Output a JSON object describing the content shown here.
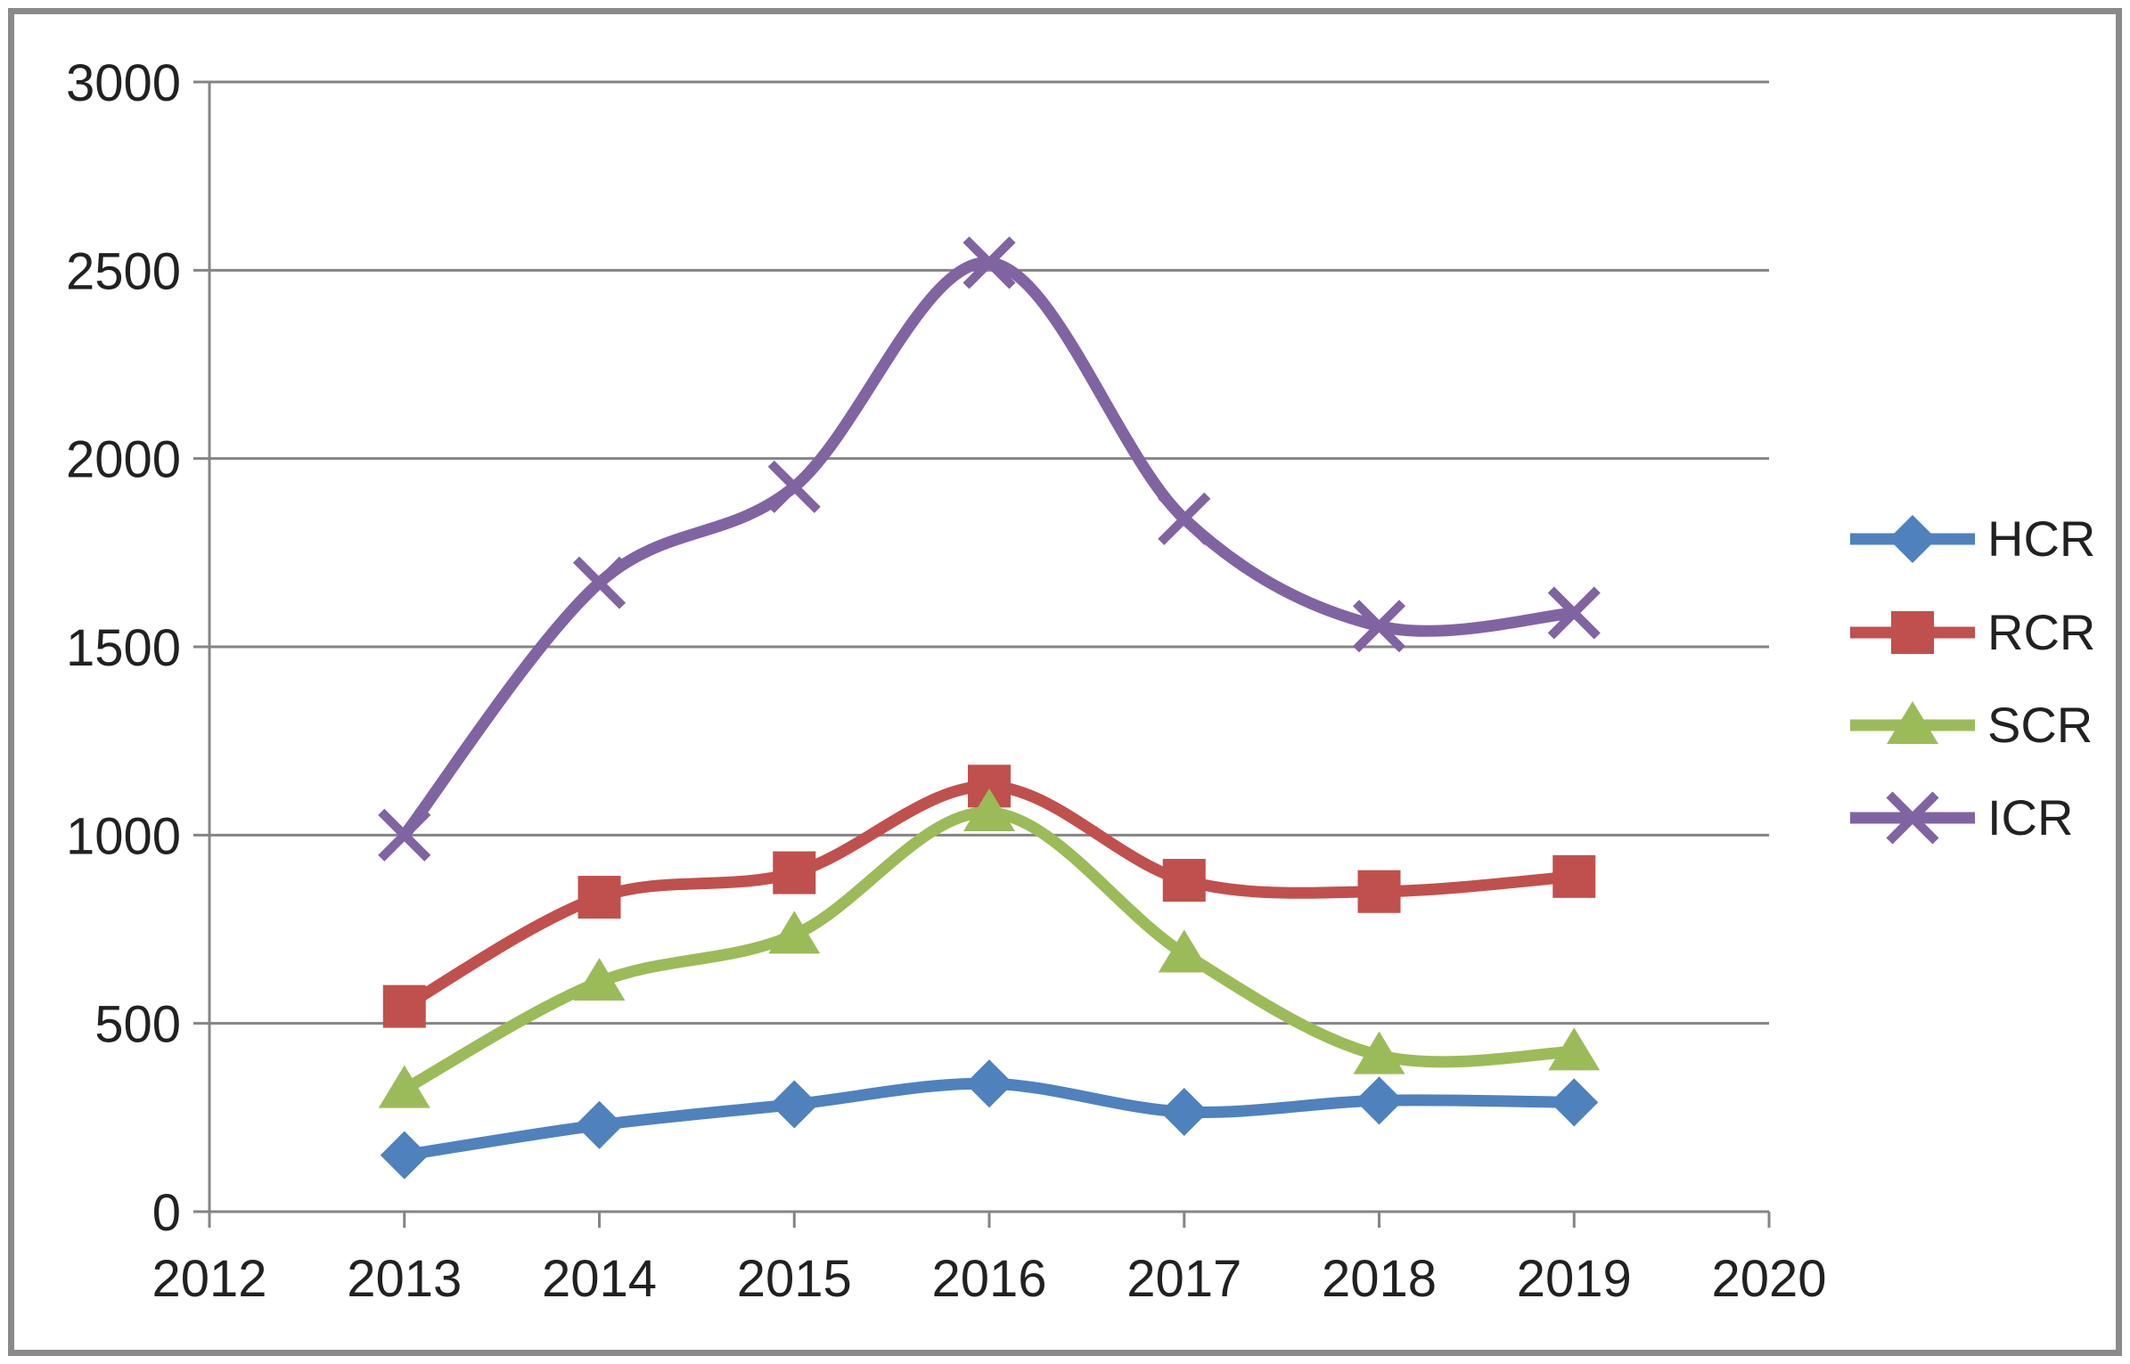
{
  "chart_data": {
    "type": "line",
    "x": [
      2013,
      2014,
      2015,
      2016,
      2017,
      2018,
      2019
    ],
    "series": [
      {
        "name": "HCR",
        "color": "#4F81BD",
        "marker": "diamond",
        "values": [
          150,
          230,
          285,
          340,
          265,
          295,
          290
        ]
      },
      {
        "name": "RCR",
        "color": "#C0504D",
        "marker": "square",
        "values": [
          545,
          835,
          900,
          1130,
          880,
          850,
          890
        ]
      },
      {
        "name": "SCR",
        "color": "#9BBB59",
        "marker": "triangle",
        "values": [
          325,
          610,
          735,
          1060,
          685,
          415,
          425
        ]
      },
      {
        "name": "ICR",
        "color": "#8064A2",
        "marker": "x",
        "values": [
          1000,
          1670,
          1925,
          2520,
          1840,
          1555,
          1590
        ]
      }
    ],
    "title": "",
    "xlabel": "",
    "ylabel": "",
    "xlim": [
      2012,
      2020
    ],
    "x_ticks": [
      2012,
      2013,
      2014,
      2015,
      2016,
      2017,
      2018,
      2019,
      2020
    ],
    "ylim": [
      0,
      3000
    ],
    "y_ticks": [
      0,
      500,
      1000,
      1500,
      2000,
      2500,
      3000
    ],
    "grid": true,
    "smooth": true,
    "legend_position": "right"
  },
  "style": {
    "grid_color": "#848484",
    "axis_color": "#848484",
    "text_color": "#212121",
    "frame_color": "#8a8a8a",
    "background": "#ffffff"
  }
}
